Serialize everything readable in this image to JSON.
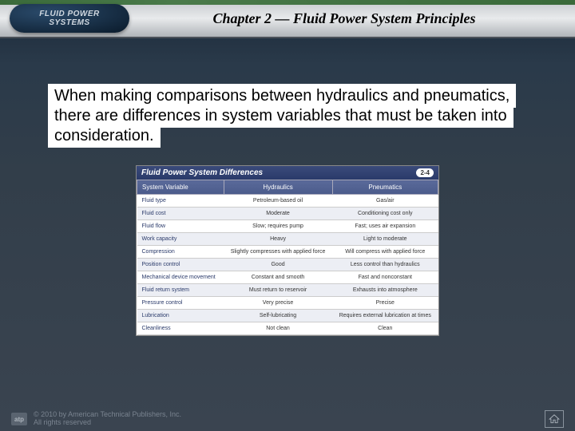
{
  "header": {
    "logo_text": "FLUID POWER\nSYSTEMS",
    "chapter_title": "Chapter 2 — Fluid Power System Principles"
  },
  "body": {
    "paragraph": "When making comparisons between hydraulics and pneumatics, there are differences in system variables that must be taken into consideration."
  },
  "figure": {
    "title": "Fluid Power System Differences",
    "figure_number": "2-4",
    "columns": [
      "System Variable",
      "Hydraulics",
      "Pneumatics"
    ],
    "rows": [
      [
        "Fluid type",
        "Petroleum-based oil",
        "Gas/air"
      ],
      [
        "Fluid cost",
        "Moderate",
        "Conditioning cost only"
      ],
      [
        "Fluid flow",
        "Slow; requires pump",
        "Fast; uses air expansion"
      ],
      [
        "Work capacity",
        "Heavy",
        "Light to moderate"
      ],
      [
        "Compression",
        "Slightly compresses with applied force",
        "Will compress with applied force"
      ],
      [
        "Position control",
        "Good",
        "Less control than hydraulics"
      ],
      [
        "Mechanical device movement",
        "Constant and smooth",
        "Fast and nonconstant"
      ],
      [
        "Fluid return system",
        "Must return to reservoir",
        "Exhausts into atmosphere"
      ],
      [
        "Pressure control",
        "Very precise",
        "Precise"
      ],
      [
        "Lubrication",
        "Self-lubricating",
        "Requires external lubrication at times"
      ],
      [
        "Cleanliness",
        "Not clean",
        "Clean"
      ]
    ],
    "colors": {
      "title_bar_bg": "#2a3a6a",
      "header_bg": "#4a5a8a",
      "row_alt_bg": "#eceef4",
      "border": "#cccccc"
    }
  },
  "footer": {
    "publisher_badge": "atp",
    "copyright": "© 2010 by American Technical Publishers, Inc.\nAll rights reserved"
  }
}
